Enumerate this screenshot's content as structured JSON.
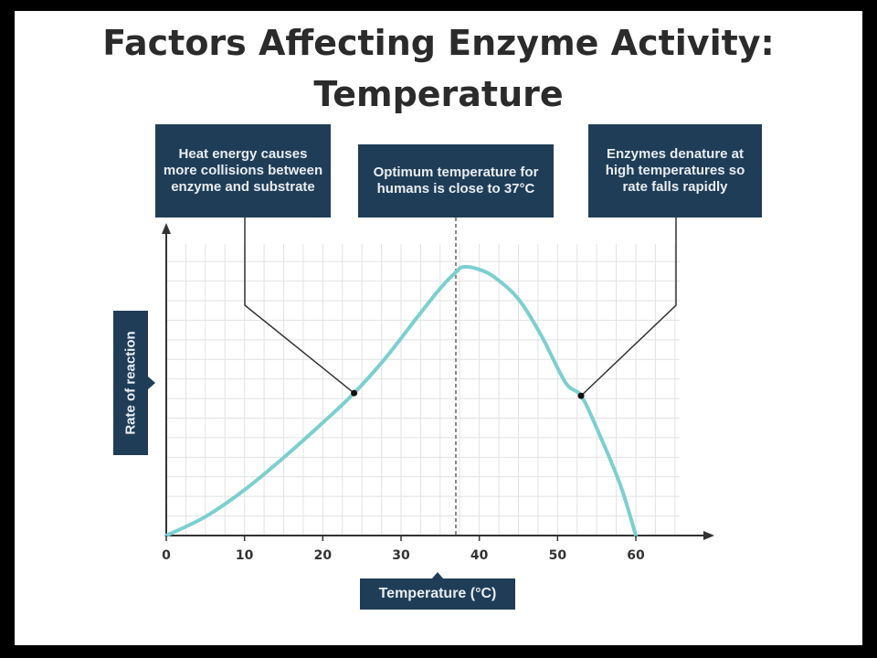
{
  "title_line1": "Factors Affecting Enzyme Activity:",
  "title_line2": "Temperature",
  "callouts": {
    "left": "Heat energy causes more collisions between enzyme and substrate",
    "middle": "Optimum temperature for humans is close to 37°C",
    "right": "Enzymes denature at high temperatures so rate falls rapidly"
  },
  "colors": {
    "curve": "#7ccfcf",
    "box": "#1f3d57",
    "grid": "#e2e2e2"
  },
  "chart_data": {
    "type": "line",
    "title": "Factors Affecting Enzyme Activity: Temperature",
    "xlabel": "Temperature (°C)",
    "ylabel": "Rate of reaction",
    "xlim": [
      0,
      60
    ],
    "x_ticks": [
      "0",
      "10",
      "20",
      "30",
      "40",
      "50",
      "60"
    ],
    "grid": true,
    "optimum_line_x": 37,
    "series": [
      {
        "x": [
          0,
          5,
          10,
          15,
          20,
          24,
          28,
          32,
          35,
          37,
          38,
          40,
          42,
          45,
          48,
          51,
          53,
          55,
          58,
          60
        ],
        "y": [
          0.0,
          0.07,
          0.17,
          0.29,
          0.42,
          0.53,
          0.66,
          0.81,
          0.92,
          0.98,
          1.0,
          0.99,
          0.96,
          0.88,
          0.74,
          0.57,
          0.52,
          0.4,
          0.19,
          0.0
        ]
      }
    ],
    "annotations": [
      {
        "x": 24,
        "y": 0.53,
        "callout": "left"
      },
      {
        "x": 53,
        "y": 0.52,
        "callout": "right"
      }
    ]
  }
}
